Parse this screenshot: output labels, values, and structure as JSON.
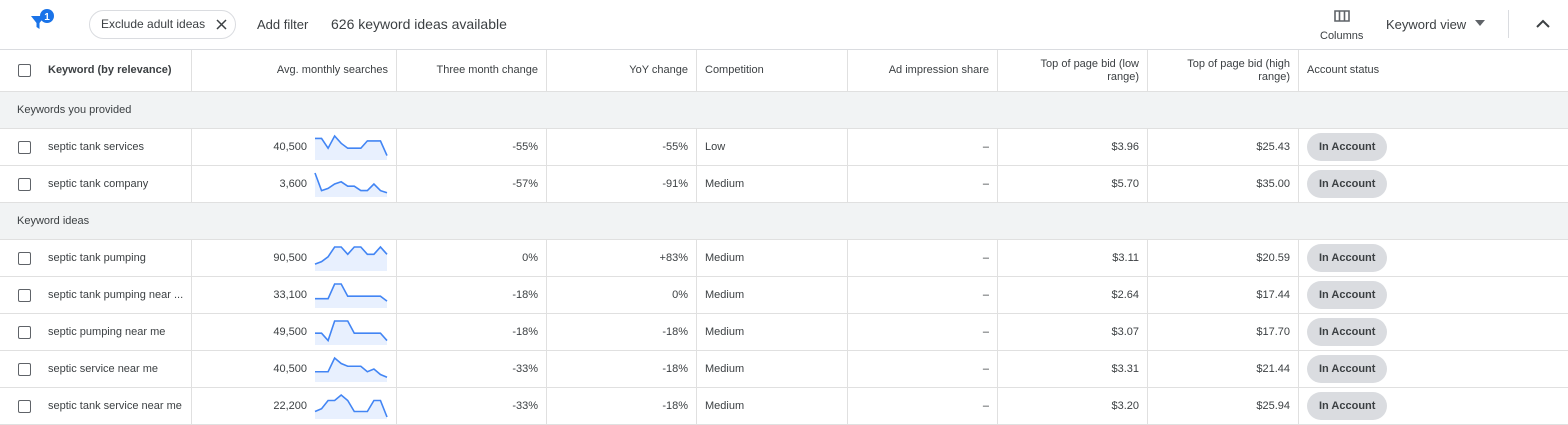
{
  "toolbar": {
    "filter_count": "1",
    "chip": "Exclude adult ideas",
    "add_filter": "Add filter",
    "summary": "626 keyword ideas available",
    "columns": "Columns",
    "view": "Keyword view"
  },
  "table": {
    "columns": [
      "Keyword (by relevance)",
      "Avg. monthly searches",
      "Three month change",
      "YoY change",
      "Competition",
      "Ad impression share",
      "Top of page bid (low range)",
      "Top of page bid (high range)",
      "Account status"
    ],
    "groups": [
      {
        "label": "Keywords you provided",
        "rows": [
          {
            "keyword": "septic tank services",
            "searches": "40,500",
            "trend": [
              8,
              8,
              4,
              9,
              6,
              4,
              4,
              4,
              7,
              7,
              7,
              1
            ],
            "three_month": "-55%",
            "yoy": "-55%",
            "competition": "Low",
            "ad_share": "–",
            "bid_low": "$3.96",
            "bid_high": "$25.43",
            "status": "In Account"
          },
          {
            "keyword": "septic tank company",
            "searches": "3,600",
            "trend": [
              10,
              2,
              3,
              5,
              6,
              4,
              4,
              2,
              2,
              5,
              2,
              1
            ],
            "three_month": "-57%",
            "yoy": "-91%",
            "competition": "Medium",
            "ad_share": "–",
            "bid_low": "$5.70",
            "bid_high": "$35.00",
            "status": "In Account"
          }
        ]
      },
      {
        "label": "Keyword ideas",
        "rows": [
          {
            "keyword": "septic tank pumping",
            "searches": "90,500",
            "trend": [
              2,
              3,
              5,
              9,
              9,
              6,
              9,
              9,
              6,
              6,
              9,
              6
            ],
            "three_month": "0%",
            "yoy": "+83%",
            "competition": "Medium",
            "ad_share": "–",
            "bid_low": "$3.11",
            "bid_high": "$20.59",
            "status": "In Account"
          },
          {
            "keyword": "septic tank pumping near ...",
            "searches": "33,100",
            "trend": [
              3,
              3,
              3,
              9,
              9,
              4,
              4,
              4,
              4,
              4,
              4,
              2
            ],
            "three_month": "-18%",
            "yoy": "0%",
            "competition": "Medium",
            "ad_share": "–",
            "bid_low": "$2.64",
            "bid_high": "$17.44",
            "status": "In Account"
          },
          {
            "keyword": "septic pumping near me",
            "searches": "49,500",
            "trend": [
              4,
              4,
              1,
              9,
              9,
              9,
              4,
              4,
              4,
              4,
              4,
              1
            ],
            "three_month": "-18%",
            "yoy": "-18%",
            "competition": "Medium",
            "ad_share": "–",
            "bid_low": "$3.07",
            "bid_high": "$17.70",
            "status": "In Account"
          },
          {
            "keyword": "septic service near me",
            "searches": "40,500",
            "trend": [
              3,
              3,
              3,
              8,
              6,
              5,
              5,
              5,
              3,
              4,
              2,
              1
            ],
            "three_month": "-33%",
            "yoy": "-18%",
            "competition": "Medium",
            "ad_share": "–",
            "bid_low": "$3.31",
            "bid_high": "$21.44",
            "status": "In Account"
          },
          {
            "keyword": "septic tank service near me",
            "searches": "22,200",
            "trend": [
              2,
              3,
              6,
              6,
              8,
              6,
              2,
              2,
              2,
              6,
              6,
              0
            ],
            "three_month": "-33%",
            "yoy": "-18%",
            "competition": "Medium",
            "ad_share": "–",
            "bid_low": "$3.20",
            "bid_high": "$25.94",
            "status": "In Account"
          }
        ]
      }
    ]
  }
}
